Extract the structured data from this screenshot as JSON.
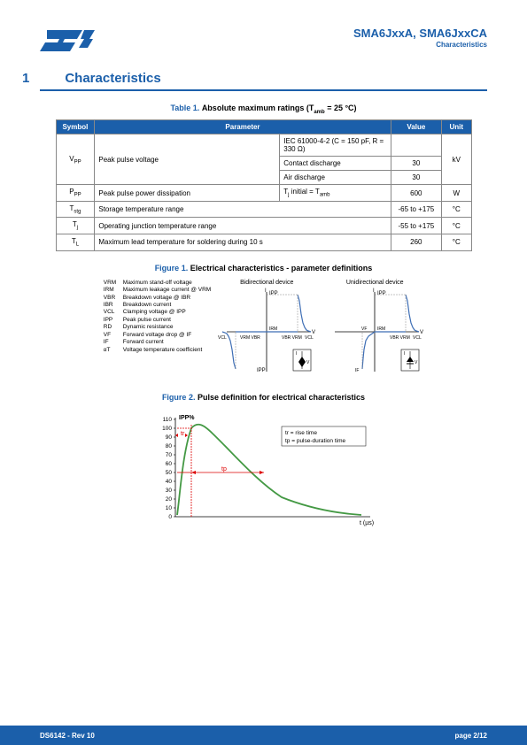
{
  "header": {
    "product": "SMA6JxxA, SMA6JxxCA",
    "subtitle": "Characteristics"
  },
  "section": {
    "num": "1",
    "title": "Characteristics"
  },
  "table1": {
    "caption_label": "Table 1.",
    "caption_text": "Absolute maximum ratings (Tamb = 25 °C)",
    "headers": {
      "symbol": "Symbol",
      "parameter": "Parameter",
      "value": "Value",
      "unit": "Unit"
    },
    "rows": {
      "vpp_sym": "VPP",
      "vpp_param": "Peak pulse voltage",
      "vpp_cond": "IEC 61000-4-2 (C = 150 pF, R = 330 Ω)",
      "vpp_contact": "Contact discharge",
      "vpp_contact_val": "30",
      "vpp_air": "Air discharge",
      "vpp_air_val": "30",
      "vpp_unit": "kV",
      "ppp_sym": "PPP",
      "ppp_param": "Peak pulse power dissipation",
      "ppp_cond": "Tj initial = Tamb",
      "ppp_val": "600",
      "ppp_unit": "W",
      "tstg_sym": "Tstg",
      "tstg_param": "Storage temperature range",
      "tstg_val": "-65 to +175",
      "tstg_unit": "°C",
      "tj_sym": "Tj",
      "tj_param": "Operating junction temperature range",
      "tj_val": "-55 to +175",
      "tj_unit": "°C",
      "tl_sym": "TL",
      "tl_param": "Maximum lead temperature for soldering during 10 s",
      "tl_val": "260",
      "tl_unit": "°C"
    }
  },
  "figure1": {
    "caption_label": "Figure 1.",
    "caption_text": "Electrical characteristics - parameter definitions",
    "legend": [
      {
        "sym": "VRM",
        "desc": "Maximum stand-off voltage"
      },
      {
        "sym": "IRM",
        "desc": "Maximum leakage current @ VRM"
      },
      {
        "sym": "VBR",
        "desc": "Breakdown voltage @ IBR"
      },
      {
        "sym": "IBR",
        "desc": "Breakdown current"
      },
      {
        "sym": "VCL",
        "desc": "Clamping voltage @ IPP"
      },
      {
        "sym": "IPP",
        "desc": "Peak pulse current"
      },
      {
        "sym": "RD",
        "desc": "Dynamic resistance"
      },
      {
        "sym": "VF",
        "desc": "Forward voltage drop @ IF"
      },
      {
        "sym": "IF",
        "desc": "Forward current"
      },
      {
        "sym": "αT",
        "desc": "Voltage temperature coefficient"
      }
    ],
    "graph1_title": "Bidirectional device",
    "graph2_title": "Unidirectional device"
  },
  "figure2": {
    "caption_label": "Figure 2.",
    "caption_text": "Pulse definition for electrical characteristics",
    "yaxis": "IPP%",
    "ylabels": [
      "110",
      "100",
      "90",
      "80",
      "70",
      "60",
      "50",
      "40",
      "30",
      "20",
      "10",
      "0"
    ],
    "xlabel": "t (µs)",
    "legend": {
      "tr": "tr = rise time",
      "tp": "tp = pulse-duration time"
    },
    "curve_color": "#449944",
    "marker_tr": "tr",
    "marker_tp": "tp"
  },
  "footer": {
    "left": "DS6142 - Rev 10",
    "right": "page 2/12"
  }
}
